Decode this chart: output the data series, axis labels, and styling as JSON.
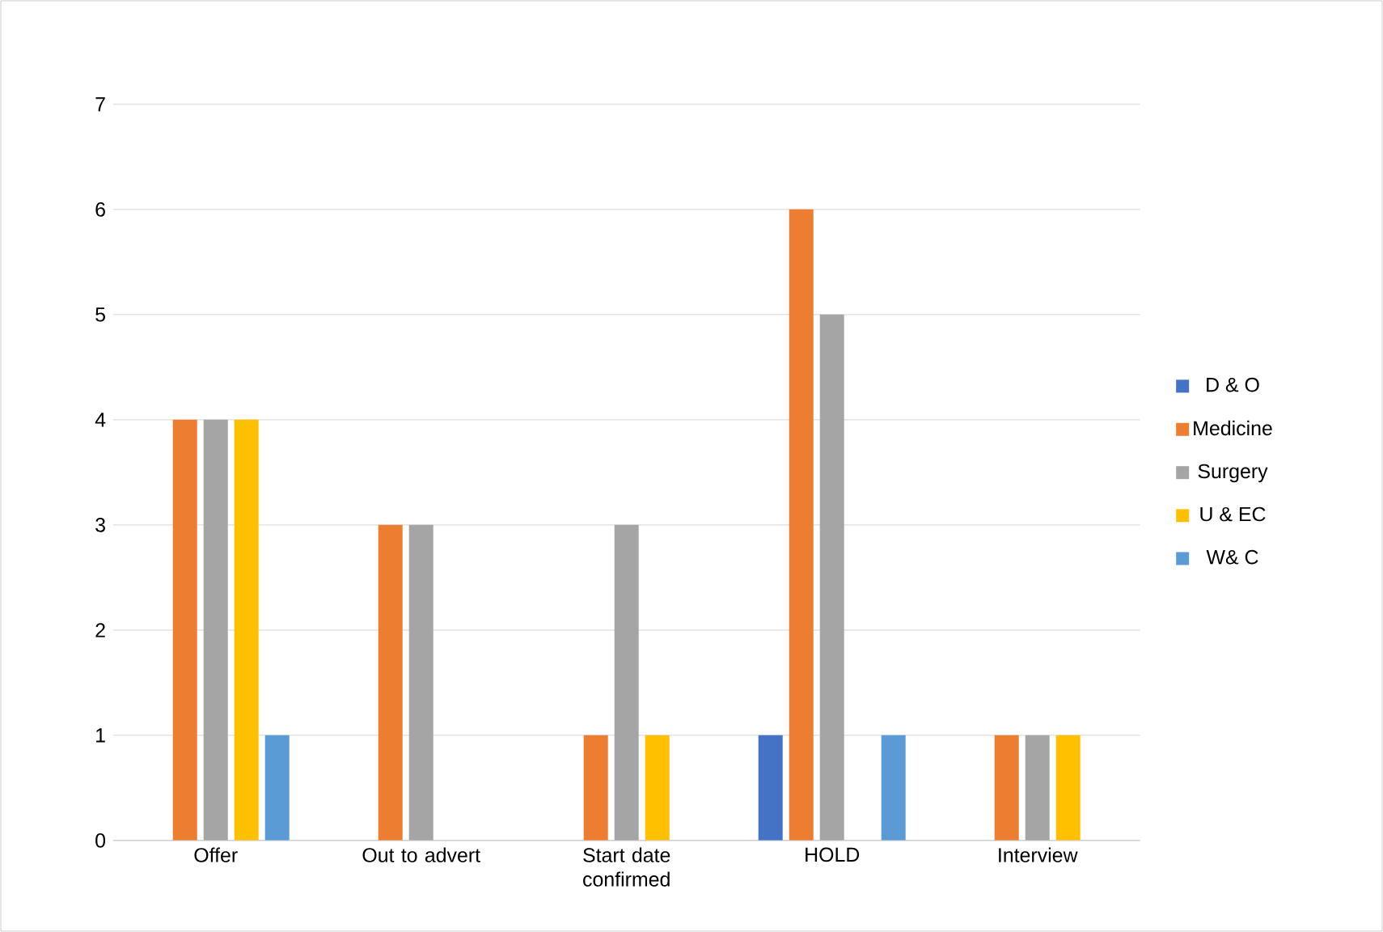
{
  "chart_data": {
    "type": "bar",
    "categories": [
      "Offer",
      "Out to advert",
      "Start date confirmed",
      "HOLD",
      "Interview"
    ],
    "series": [
      {
        "name": "D & O",
        "color": "#4472c4",
        "values": [
          0,
          0,
          0,
          1,
          0
        ]
      },
      {
        "name": "Medicine",
        "color": "#ed7d31",
        "values": [
          4,
          3,
          1,
          6,
          1
        ]
      },
      {
        "name": "Surgery",
        "color": "#a5a5a5",
        "values": [
          4,
          3,
          3,
          5,
          1
        ]
      },
      {
        "name": "U & EC",
        "color": "#ffc000",
        "values": [
          4,
          0,
          1,
          0,
          1
        ]
      },
      {
        "name": "W& C",
        "color": "#5b9bd5",
        "values": [
          1,
          0,
          0,
          1,
          0
        ]
      }
    ],
    "ylim": [
      0,
      7
    ],
    "yticks": [
      0,
      1,
      2,
      3,
      4,
      5,
      6,
      7
    ],
    "grid": "y",
    "legend": "right"
  }
}
